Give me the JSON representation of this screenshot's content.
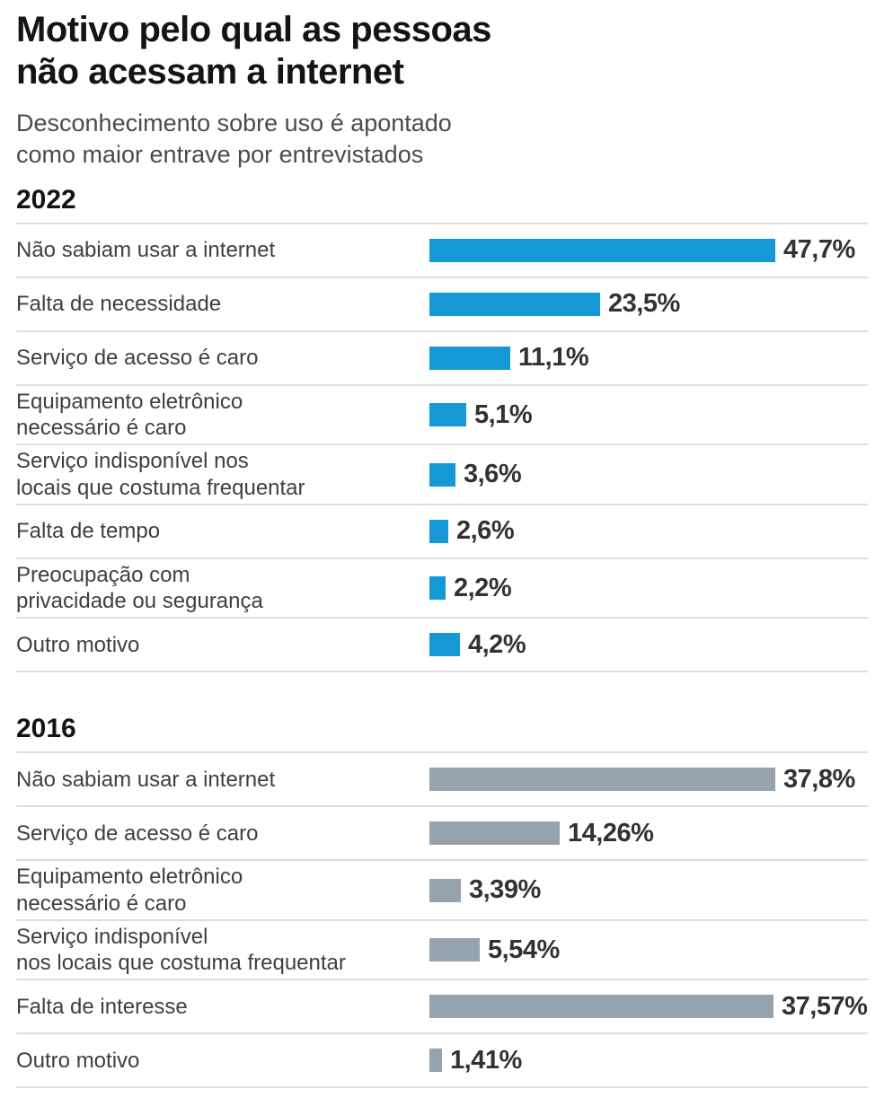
{
  "title": "Motivo pelo qual as pessoas\nnão acessam a internet",
  "subtitle": "Desconhecimento sobre uso é apontado\ncomo maior entrave por entrevistados",
  "colors": {
    "bar_2022": "#1599d6",
    "bar_2016": "#94a3ad",
    "separator": "#dedede",
    "title_text": "#141414",
    "subtitle_text": "#4b4b4b",
    "label_text": "#3f3f3f",
    "value_text": "#323232"
  },
  "chart_data": [
    {
      "type": "bar",
      "orientation": "horizontal",
      "section_title": "2022",
      "unit": "%",
      "bar_color": "#1599d6",
      "axis_max_pct": 47.7,
      "grid": false,
      "legend": false,
      "categories": [
        "Não sabiam usar a internet",
        "Falta de necessidade",
        "Serviço de acesso é caro",
        "Equipamento eletrônico necessário é caro",
        "Serviço indisponível nos locais que costuma frequentar",
        "Falta de tempo",
        "Preocupação com privacidade ou segurança",
        "Outro motivo"
      ],
      "labels_display": [
        "Não sabiam usar a internet",
        "Falta de necessidade",
        "Serviço de acesso é caro",
        "Equipamento eletrônico\nnecessário é caro",
        "Serviço indisponível nos\nlocais que costuma frequentar",
        "Falta de tempo",
        "Preocupação com\nprivacidade ou segurança",
        "Outro motivo"
      ],
      "values": [
        47.7,
        23.5,
        11.1,
        5.1,
        3.6,
        2.6,
        2.2,
        4.2
      ],
      "value_labels": [
        "47,7%",
        "23,5%",
        "11,1%",
        "5,1%",
        "3,6%",
        "2,6%",
        "2,2%",
        "4,2%"
      ]
    },
    {
      "type": "bar",
      "orientation": "horizontal",
      "section_title": "2016",
      "unit": "%",
      "bar_color": "#94a3ad",
      "axis_max_pct": 37.8,
      "grid": false,
      "legend": false,
      "categories": [
        "Não sabiam usar a internet",
        "Serviço de acesso é caro",
        "Equipamento eletrônico necessário é caro",
        "Serviço indisponível nos locais que costuma frequentar",
        "Falta de interesse",
        "Outro motivo"
      ],
      "labels_display": [
        "Não sabiam usar a internet",
        "Serviço de acesso é caro",
        "Equipamento eletrônico\nnecessário é caro",
        "Serviço indisponível\nnos locais que costuma frequentar",
        "Falta de interesse",
        "Outro motivo"
      ],
      "values": [
        37.8,
        14.26,
        3.39,
        5.54,
        37.57,
        1.41
      ],
      "value_labels": [
        "37,8%",
        "14,26%",
        "3,39%",
        "5,54%",
        "37,57%",
        "1,41%"
      ]
    }
  ]
}
